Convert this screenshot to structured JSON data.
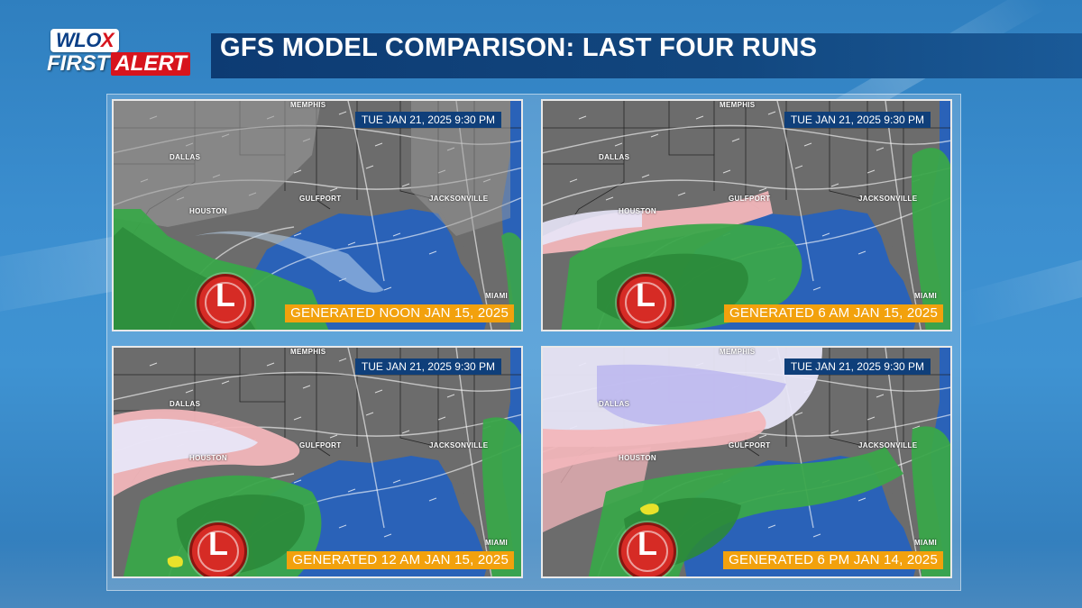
{
  "header": {
    "logo_top_a": "WLO",
    "logo_top_b": "X",
    "logo_first": "FIRST",
    "logo_alert": "ALERT",
    "title": "GFS MODEL COMPARISON: LAST FOUR RUNS"
  },
  "colors": {
    "title_bar": "#0d3b73",
    "valid_badge": "#0f3f7a",
    "generated_badge": "#f2a10d",
    "low_marker": "#d62b25",
    "rain_green": "#3aa64a",
    "snow_lavender": "#c9c6f0",
    "mix_pink": "#f2b6bb",
    "gulf_blue": "#2a62b8"
  },
  "low_symbol": "L",
  "cities": {
    "memphis": "MEMPHIS",
    "dallas": "DALLAS",
    "houston": "HOUSTON",
    "gulfport": "GULFPORT",
    "jacksonville": "JACKSONVILLE",
    "miami": "MIAMI"
  },
  "panels": [
    {
      "valid_time": "TUE  JAN 21, 2025 9:30 PM",
      "generated": "GENERATED NOON JAN 15, 2025"
    },
    {
      "valid_time": "TUE  JAN 21, 2025 9:30 PM",
      "generated": "GENERATED 6 AM JAN 15, 2025"
    },
    {
      "valid_time": "TUE  JAN 21, 2025 9:30 PM",
      "generated": "GENERATED 12 AM JAN 15, 2025"
    },
    {
      "valid_time": "TUE  JAN 21, 2025 9:30 PM",
      "generated": "GENERATED 6 PM JAN 14, 2025"
    }
  ]
}
